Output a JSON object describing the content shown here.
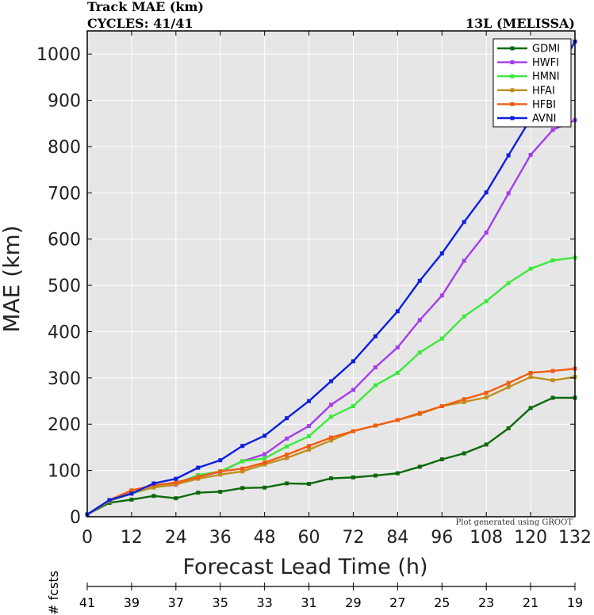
{
  "header": {
    "title": "Track MAE (km)",
    "cycles": "CYCLES: 41/41",
    "storm": "13L (MELISSA)"
  },
  "footer_note": "Plot generated using GROOT",
  "fcsts_label": "# fcsts",
  "chart_data": {
    "type": "line",
    "xlabel": "Forecast Lead Time (h)",
    "ylabel": "MAE (km)",
    "xlim": [
      0,
      132
    ],
    "ylim": [
      0,
      1050
    ],
    "xticks": [
      0,
      12,
      24,
      36,
      48,
      60,
      72,
      84,
      96,
      108,
      120,
      132
    ],
    "yticks": [
      0,
      100,
      200,
      300,
      400,
      500,
      600,
      700,
      800,
      900,
      1000
    ],
    "grid": true,
    "legend_position": "top-right",
    "background": "#e6e6e6",
    "x": [
      0,
      6,
      12,
      18,
      24,
      30,
      36,
      42,
      48,
      54,
      60,
      66,
      72,
      78,
      84,
      90,
      96,
      102,
      108,
      114,
      120,
      126,
      132
    ],
    "series": [
      {
        "name": "GDMI",
        "color": "#0c6a0c",
        "values": [
          5,
          30,
          37,
          45,
          40,
          52,
          54,
          62,
          63,
          72,
          71,
          83,
          85,
          89,
          94,
          108,
          124,
          137,
          156,
          191,
          235,
          257,
          257
        ]
      },
      {
        "name": "HWFI",
        "color": "#a53ee8",
        "values": [
          5,
          34,
          50,
          64,
          69,
          86,
          97,
          120,
          135,
          169,
          196,
          242,
          274,
          323,
          366,
          425,
          478,
          553,
          614,
          699,
          782,
          836,
          857
        ]
      },
      {
        "name": "HMNI",
        "color": "#3de83d",
        "values": [
          5,
          34,
          50,
          64,
          72,
          90,
          98,
          120,
          126,
          152,
          174,
          216,
          239,
          284,
          311,
          355,
          385,
          433,
          466,
          505,
          536,
          554,
          560
        ]
      },
      {
        "name": "HFAI",
        "color": "#c08f1f",
        "values": [
          5,
          34,
          52,
          63,
          70,
          82,
          91,
          98,
          113,
          127,
          145,
          165,
          185,
          197,
          209,
          222,
          239,
          248,
          258,
          280,
          302,
          295,
          302
        ]
      },
      {
        "name": "HFBI",
        "color": "#f25c12",
        "values": [
          5,
          36,
          57,
          68,
          74,
          86,
          98,
          104,
          117,
          134,
          153,
          171,
          185,
          197,
          209,
          224,
          239,
          254,
          268,
          289,
          311,
          315,
          320
        ]
      },
      {
        "name": "AVNI",
        "color": "#0d1fe0",
        "values": [
          5,
          36,
          50,
          72,
          82,
          106,
          122,
          153,
          175,
          213,
          250,
          293,
          336,
          390,
          444,
          510,
          569,
          637,
          701,
          781,
          860,
          943,
          1027
        ]
      }
    ],
    "fcsts": {
      "x": [
        0,
        12,
        24,
        36,
        48,
        60,
        72,
        84,
        96,
        108,
        120,
        132
      ],
      "labels": [
        "41",
        "39",
        "37",
        "35",
        "33",
        "31",
        "29",
        "27",
        "25",
        "23",
        "21",
        "19"
      ]
    }
  }
}
